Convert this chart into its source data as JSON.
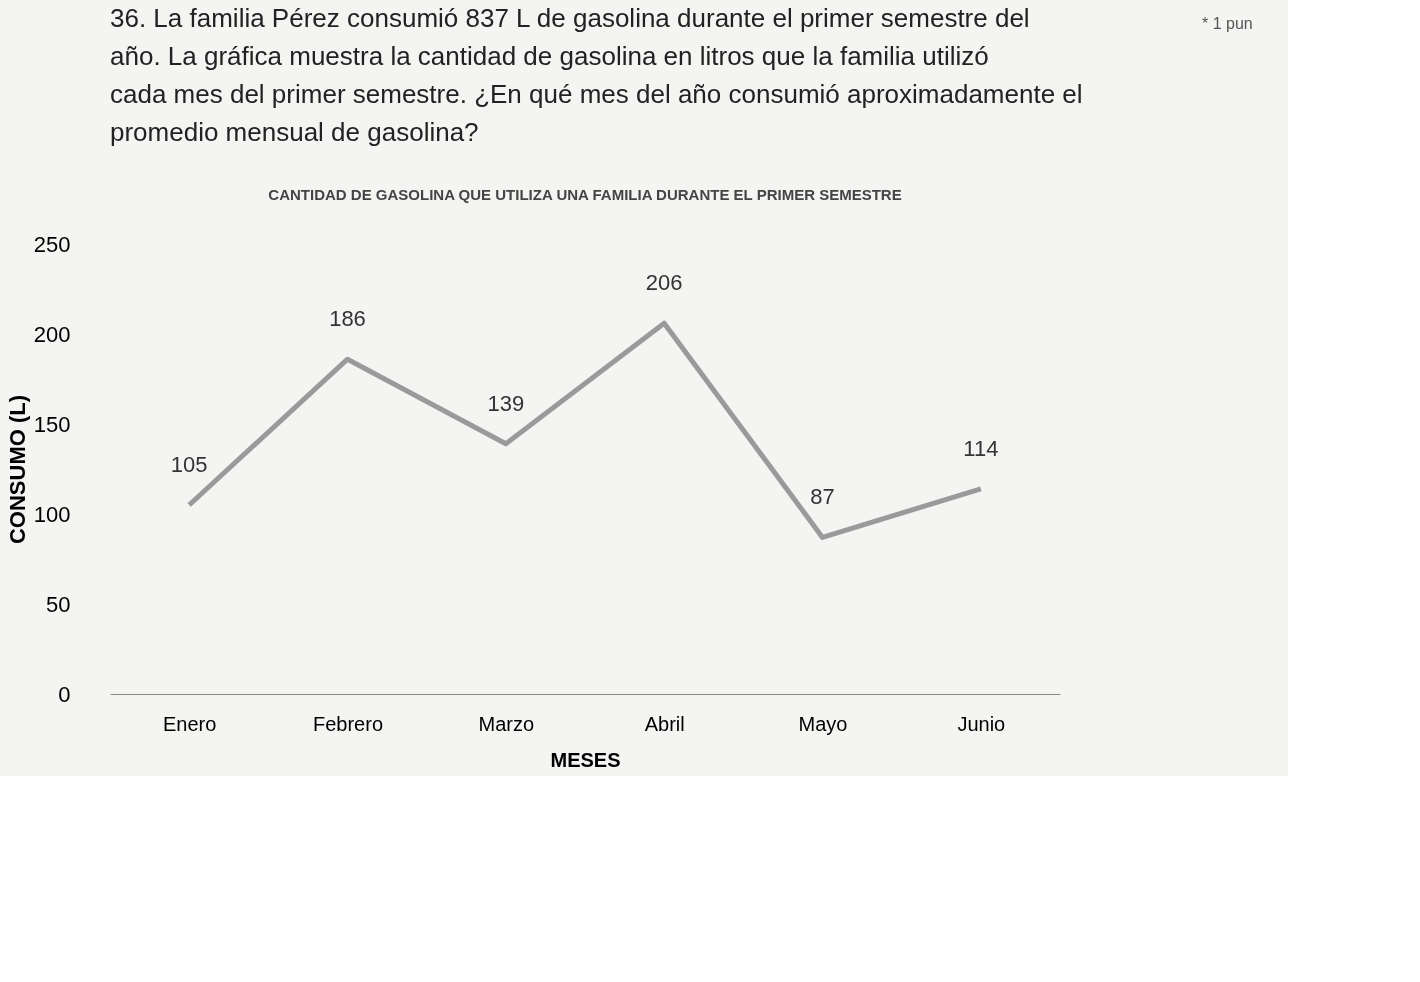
{
  "chart_data": {
    "type": "line",
    "title": "CANTIDAD DE GASOLINA QUE UTILIZA UNA FAMILIA DURANTE EL PRIMER SEMESTRE",
    "xlabel": "MESES",
    "ylabel": "CONSUMO (L)",
    "annotations": [
      "36. La familia Pérez consumió 837 L de gasolina durante el primer semestre del año. La gráfica muestra la cantidad de gasolina en litros que la familia utilizó cada mes del primer semestre. ¿En qué mes del año consumió aproximadamente el promedio mensual de gasolina?",
      "* 1 pun"
    ],
    "categories": [
      "Enero",
      "Febrero",
      "Marzo",
      "Abril",
      "Mayo",
      "Junio"
    ],
    "series": [
      {
        "color": "#9a9a9a",
        "values": [
          105,
          186,
          139,
          206,
          87,
          114
        ]
      }
    ],
    "ylim": [
      0,
      250
    ],
    "yticks": [
      0,
      50,
      100,
      150,
      200,
      250
    ],
    "data_labels": true,
    "grid": false,
    "marker": "none",
    "line_style": "solid"
  }
}
